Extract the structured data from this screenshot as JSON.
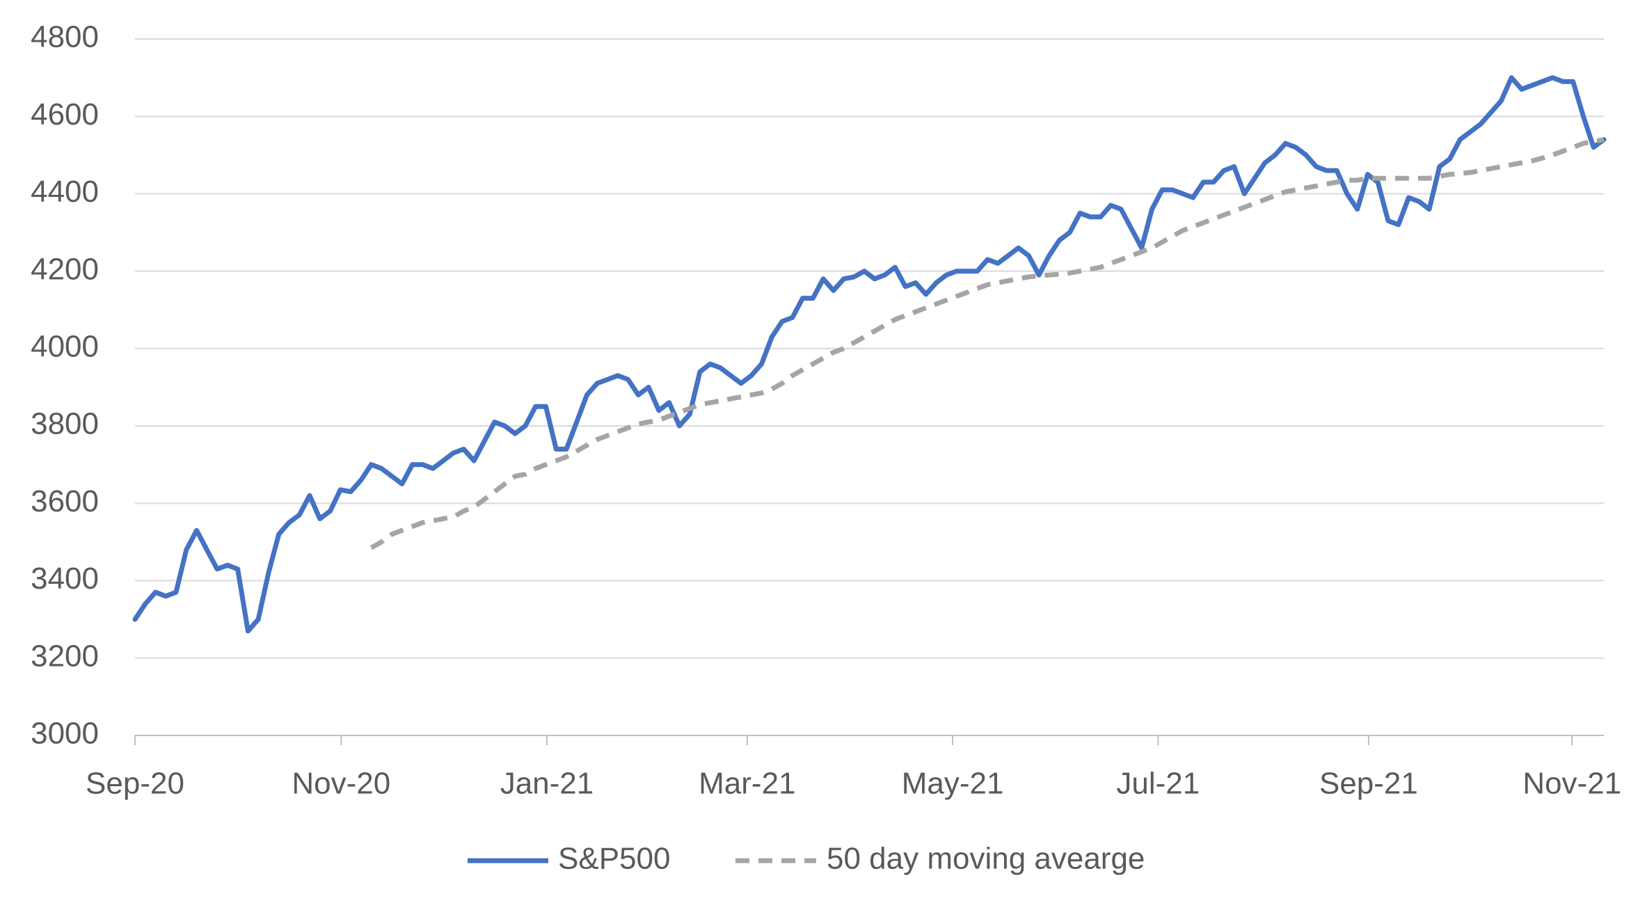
{
  "chart_data": {
    "type": "line",
    "xlim": [
      0,
      143
    ],
    "xticks": [
      {
        "value": 0,
        "label": "Sep-20"
      },
      {
        "value": 20.07,
        "label": "Nov-20"
      },
      {
        "value": 40.1,
        "label": "Jan-21"
      },
      {
        "value": 59.6,
        "label": "Mar-21"
      },
      {
        "value": 79.6,
        "label": "May-21"
      },
      {
        "value": 99.6,
        "label": "Jul-21"
      },
      {
        "value": 120.1,
        "label": "Sep-21"
      },
      {
        "value": 139.9,
        "label": "Nov-21"
      }
    ],
    "ylim": [
      3000,
      4800
    ],
    "yticks": [
      3000,
      3200,
      3400,
      3600,
      3800,
      4000,
      4200,
      4400,
      4600,
      4800
    ],
    "grid": true,
    "legend": "bottom",
    "series": [
      {
        "name": "S&P500",
        "color": "#4472c4",
        "dash": false,
        "values": [
          3300,
          3340,
          3370,
          3360,
          3370,
          3480,
          3530,
          3480,
          3430,
          3440,
          3430,
          3270,
          3300,
          3420,
          3520,
          3550,
          3570,
          3620,
          3560,
          3580,
          3635,
          3630,
          3660,
          3700,
          3690,
          3670,
          3650,
          3700,
          3700,
          3690,
          3710,
          3730,
          3740,
          3710,
          3760,
          3810,
          3800,
          3780,
          3800,
          3850,
          3850,
          3740,
          3740,
          3810,
          3880,
          3910,
          3920,
          3930,
          3920,
          3880,
          3900,
          3840,
          3860,
          3800,
          3830,
          3940,
          3960,
          3950,
          3930,
          3910,
          3930,
          3960,
          4030,
          4070,
          4080,
          4130,
          4130,
          4180,
          4150,
          4180,
          4185,
          4200,
          4180,
          4190,
          4210,
          4160,
          4170,
          4140,
          4170,
          4190,
          4200,
          4200,
          4200,
          4230,
          4220,
          4240,
          4260,
          4240,
          4190,
          4240,
          4280,
          4300,
          4350,
          4340,
          4340,
          4370,
          4360,
          4310,
          4260,
          4360,
          4410,
          4410,
          4400,
          4390,
          4430,
          4430,
          4460,
          4470,
          4400,
          4440,
          4480,
          4500,
          4530,
          4520,
          4500,
          4470,
          4460,
          4460,
          4400,
          4360,
          4450,
          4430,
          4330,
          4320,
          4390,
          4380,
          4360,
          4470,
          4490,
          4540,
          4560,
          4580,
          4610,
          4640,
          4700,
          4670,
          4680,
          4690,
          4700,
          4690,
          4690,
          4600,
          4520,
          4540
        ]
      },
      {
        "name": "50 day moving avearge",
        "color": "#a5a5a5",
        "dash": true,
        "values": [
          null,
          null,
          null,
          null,
          null,
          null,
          null,
          null,
          null,
          null,
          null,
          null,
          null,
          null,
          null,
          null,
          null,
          null,
          null,
          null,
          null,
          null,
          null,
          3485,
          3500,
          3520,
          3530,
          3540,
          3550,
          3555,
          3560,
          3565,
          3580,
          3590,
          3610,
          3630,
          3650,
          3670,
          3675,
          3690,
          3700,
          3710,
          3720,
          3735,
          3750,
          3765,
          3775,
          3785,
          3795,
          3805,
          3810,
          3815,
          3825,
          3835,
          3845,
          3855,
          3860,
          3865,
          3870,
          3875,
          3880,
          3885,
          3895,
          3910,
          3930,
          3945,
          3960,
          3975,
          3990,
          4000,
          4015,
          4030,
          4045,
          4060,
          4075,
          4085,
          4095,
          4105,
          4115,
          4125,
          4135,
          4145,
          4155,
          4165,
          4170,
          4175,
          4180,
          4185,
          4188,
          4190,
          4192,
          4195,
          4200,
          4205,
          4210,
          4220,
          4230,
          4240,
          4250,
          4260,
          4275,
          4290,
          4305,
          4315,
          4325,
          4335,
          4345,
          4355,
          4365,
          4375,
          4385,
          4395,
          4405,
          4410,
          4415,
          4420,
          4425,
          4430,
          4435,
          4435,
          4440,
          4440,
          4440,
          4440,
          4440,
          4440,
          4440,
          4445,
          4450,
          4452,
          4455,
          4460,
          4465,
          4470,
          4475,
          4480,
          4485,
          4492,
          4500,
          4510,
          4520,
          4530,
          4535,
          4540
        ]
      }
    ]
  }
}
